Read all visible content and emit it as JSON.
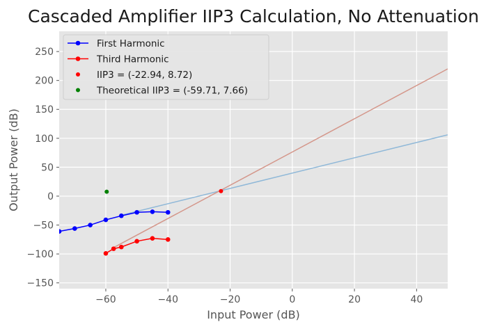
{
  "chart_data": {
    "type": "line",
    "title": "Cascaded Amplifier IIP3 Calculation, No Attenuation",
    "xlabel": "Input Power (dB)",
    "ylabel": "Output Power (dB)",
    "xlim": [
      -75,
      50
    ],
    "ylim": [
      -160,
      285
    ],
    "xticks": [
      -60,
      -40,
      -20,
      0,
      20,
      40
    ],
    "yticks": [
      -150,
      -100,
      -50,
      0,
      50,
      100,
      150,
      200,
      250
    ],
    "xtick_labels": [
      "−60",
      "−40",
      "−20",
      "0",
      "20",
      "40"
    ],
    "ytick_labels": [
      "−150",
      "−100",
      "−50",
      "0",
      "50",
      "100",
      "150",
      "200",
      "250"
    ],
    "grid": true,
    "legend_position": "top-left",
    "series": [
      {
        "name": "First Harmonic",
        "color": "#0000ff",
        "marker": "circle",
        "x": [
          -75,
          -70,
          -65,
          -60,
          -55,
          -50,
          -45,
          -40
        ],
        "y": [
          -61,
          -56,
          -50,
          -41,
          -34,
          -28,
          -27,
          -28
        ]
      },
      {
        "name": "Third Harmonic",
        "color": "#ff0000",
        "marker": "circle",
        "x": [
          -60,
          -57.5,
          -55,
          -50,
          -45,
          -40
        ],
        "y": [
          -99,
          -91,
          -88,
          -78,
          -73,
          -75
        ]
      }
    ],
    "fit_lines": [
      {
        "color": "#8fb8d8",
        "x": [
          -55,
          50
        ],
        "y": [
          -33,
          106
        ]
      },
      {
        "color": "#d4968a",
        "x": [
          -57.5,
          50
        ],
        "y": [
          -89,
          220
        ]
      }
    ],
    "points": [
      {
        "name": "IIP3 = (-22.94, 8.72)",
        "color": "#ff0000",
        "x": -22.94,
        "y": 8.72
      },
      {
        "name": "Theoretical IIP3 = (-59.71, 7.66)",
        "color": "#008000",
        "x": -59.71,
        "y": 7.66
      }
    ]
  }
}
